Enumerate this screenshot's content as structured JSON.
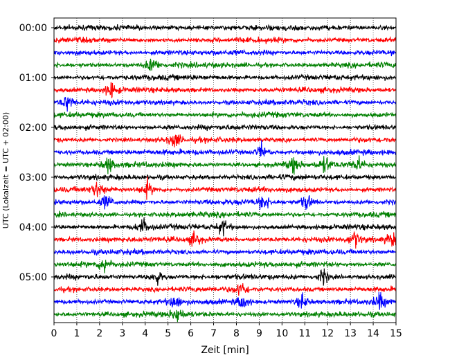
{
  "chart_data": {
    "type": "line",
    "title": "",
    "xlabel": "Zeit  [min]",
    "ylabel": "UTC (Lokalzeit = UTC + 02:00)",
    "xlim": [
      0,
      15
    ],
    "x_ticks": [
      "0",
      "1",
      "2",
      "3",
      "4",
      "5",
      "6",
      "7",
      "8",
      "9",
      "10",
      "11",
      "12",
      "13",
      "14",
      "15"
    ],
    "y_ticks": [
      "00:00",
      "01:00",
      "02:00",
      "03:00",
      "04:00",
      "05:00"
    ],
    "minutes_per_trace": 15,
    "grid": "vertical dotted lines at each minute",
    "trace_colors": [
      "#000000",
      "#ff0000",
      "#0000ff",
      "#008000"
    ],
    "traces": [
      {
        "start": "00:00",
        "color": "#000000",
        "events": []
      },
      {
        "start": "00:15",
        "color": "#ff0000",
        "events": []
      },
      {
        "start": "00:30",
        "color": "#0000ff",
        "events": []
      },
      {
        "start": "00:45",
        "color": "#008000",
        "events": [
          4.3
        ]
      },
      {
        "start": "01:00",
        "color": "#000000",
        "events": []
      },
      {
        "start": "01:15",
        "color": "#ff0000",
        "events": [
          2.5
        ]
      },
      {
        "start": "01:30",
        "color": "#0000ff",
        "events": [
          0.6
        ]
      },
      {
        "start": "01:45",
        "color": "#008000",
        "events": []
      },
      {
        "start": "02:00",
        "color": "#000000",
        "events": []
      },
      {
        "start": "02:15",
        "color": "#ff0000",
        "events": [
          5.3
        ]
      },
      {
        "start": "02:30",
        "color": "#0000ff",
        "events": [
          9.1
        ]
      },
      {
        "start": "02:45",
        "color": "#008000",
        "events": [
          2.4,
          10.5,
          11.9,
          13.3
        ]
      },
      {
        "start": "03:00",
        "color": "#000000",
        "events": []
      },
      {
        "start": "03:15",
        "color": "#ff0000",
        "events": [
          1.9,
          4.1
        ]
      },
      {
        "start": "03:30",
        "color": "#0000ff",
        "events": [
          2.3,
          9.2,
          11.1
        ]
      },
      {
        "start": "03:45",
        "color": "#008000",
        "events": []
      },
      {
        "start": "04:00",
        "color": "#000000",
        "events": [
          3.9,
          7.4
        ]
      },
      {
        "start": "04:15",
        "color": "#ff0000",
        "events": [
          6.2,
          13.2,
          14.8
        ]
      },
      {
        "start": "04:30",
        "color": "#0000ff",
        "events": []
      },
      {
        "start": "04:45",
        "color": "#008000",
        "events": [
          2.2
        ]
      },
      {
        "start": "05:00",
        "color": "#000000",
        "events": [
          4.5,
          11.8
        ]
      },
      {
        "start": "05:15",
        "color": "#ff0000",
        "events": [
          8.2
        ]
      },
      {
        "start": "05:30",
        "color": "#0000ff",
        "events": [
          5.3,
          8.3,
          10.9,
          14.3
        ]
      },
      {
        "start": "05:45",
        "color": "#008000",
        "events": [
          5.4
        ]
      }
    ]
  }
}
